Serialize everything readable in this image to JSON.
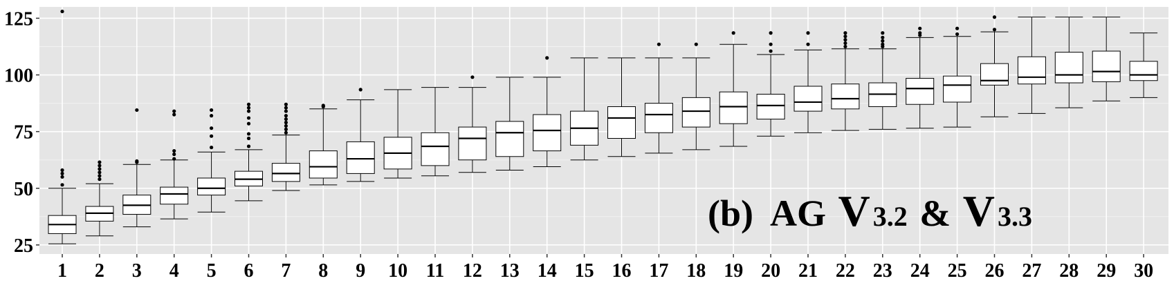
{
  "chart_data": {
    "type": "boxplot",
    "title": "",
    "xlabel": "",
    "ylabel": "",
    "categories": [
      "1",
      "2",
      "3",
      "4",
      "5",
      "6",
      "7",
      "8",
      "9",
      "10",
      "11",
      "12",
      "13",
      "14",
      "15",
      "16",
      "17",
      "18",
      "19",
      "20",
      "21",
      "22",
      "23",
      "24",
      "25",
      "26",
      "27",
      "28",
      "29",
      "30"
    ],
    "ylim": [
      21,
      130
    ],
    "yticks": [
      25,
      50,
      75,
      100,
      125
    ],
    "ytick_labels": [
      "25",
      "50",
      "75",
      "100",
      "125"
    ],
    "grid": true,
    "colors": {
      "panel": "#e5e5e5",
      "grid_major": "#ffffff",
      "box_fill": "#ffffff",
      "stroke": "#000000"
    },
    "annotation": {
      "prefix": "(b)  AG ",
      "v1": "V",
      "v1_sub": "3.2",
      "amp": " & ",
      "v2": "V",
      "v2_sub": "3.3"
    },
    "boxes": [
      {
        "cat": "1",
        "whisker_low": 25.5,
        "q1": 30,
        "median": 34,
        "q3": 38,
        "whisker_high": 50,
        "outliers": [
          51.5,
          55,
          56.5,
          58,
          128
        ]
      },
      {
        "cat": "2",
        "whisker_low": 29,
        "q1": 35.5,
        "median": 39,
        "q3": 42,
        "whisker_high": 52,
        "outliers": [
          54,
          55.5,
          57,
          58.5,
          60,
          61.5
        ]
      },
      {
        "cat": "3",
        "whisker_low": 33,
        "q1": 38.5,
        "median": 42.5,
        "q3": 47,
        "whisker_high": 60.5,
        "outliers": [
          61.5,
          62,
          84.5
        ]
      },
      {
        "cat": "4",
        "whisker_low": 36.5,
        "q1": 43,
        "median": 47.5,
        "q3": 50.5,
        "whisker_high": 62.5,
        "outliers": [
          63,
          65,
          66.5,
          82.5,
          84
        ]
      },
      {
        "cat": "5",
        "whisker_low": 39.5,
        "q1": 47,
        "median": 50,
        "q3": 54.5,
        "whisker_high": 66,
        "outliers": [
          68,
          73,
          76.5,
          82,
          84.5
        ]
      },
      {
        "cat": "6",
        "whisker_low": 44.5,
        "q1": 51,
        "median": 54,
        "q3": 57.5,
        "whisker_high": 67,
        "outliers": [
          68.5,
          72,
          74,
          78.5,
          81,
          84,
          85.5,
          87
        ]
      },
      {
        "cat": "7",
        "whisker_low": 49,
        "q1": 53,
        "median": 56.5,
        "q3": 61,
        "whisker_high": 73.5,
        "outliers": [
          74.5,
          76,
          77.5,
          79,
          80.5,
          82,
          84,
          85.5,
          87
        ]
      },
      {
        "cat": "8",
        "whisker_low": 51.5,
        "q1": 54.5,
        "median": 59.5,
        "q3": 66.5,
        "whisker_high": 85,
        "outliers": [
          86,
          86.5
        ]
      },
      {
        "cat": "9",
        "whisker_low": 53,
        "q1": 56.5,
        "median": 63,
        "q3": 70.5,
        "whisker_high": 89,
        "outliers": [
          93.5
        ]
      },
      {
        "cat": "10",
        "whisker_low": 54.5,
        "q1": 58.5,
        "median": 65.5,
        "q3": 72.5,
        "whisker_high": 93.5,
        "outliers": []
      },
      {
        "cat": "11",
        "whisker_low": 55.5,
        "q1": 60,
        "median": 68.5,
        "q3": 74.5,
        "whisker_high": 94.5,
        "outliers": []
      },
      {
        "cat": "12",
        "whisker_low": 57,
        "q1": 62.5,
        "median": 72,
        "q3": 77,
        "whisker_high": 94.5,
        "outliers": [
          99
        ]
      },
      {
        "cat": "13",
        "whisker_low": 58,
        "q1": 64,
        "median": 74.5,
        "q3": 79.5,
        "whisker_high": 99,
        "outliers": []
      },
      {
        "cat": "14",
        "whisker_low": 59.5,
        "q1": 66.5,
        "median": 75.5,
        "q3": 82.5,
        "whisker_high": 99,
        "outliers": [
          107.5
        ]
      },
      {
        "cat": "15",
        "whisker_low": 62.5,
        "q1": 69,
        "median": 76.5,
        "q3": 84,
        "whisker_high": 107.5,
        "outliers": []
      },
      {
        "cat": "16",
        "whisker_low": 64,
        "q1": 72,
        "median": 81,
        "q3": 86,
        "whisker_high": 107.5,
        "outliers": []
      },
      {
        "cat": "17",
        "whisker_low": 65.5,
        "q1": 74.5,
        "median": 82.5,
        "q3": 87.5,
        "whisker_high": 107.5,
        "outliers": [
          113.5
        ]
      },
      {
        "cat": "18",
        "whisker_low": 67,
        "q1": 77,
        "median": 84,
        "q3": 90,
        "whisker_high": 107.5,
        "outliers": [
          113.5
        ]
      },
      {
        "cat": "19",
        "whisker_low": 68.5,
        "q1": 78.5,
        "median": 86,
        "q3": 92.5,
        "whisker_high": 113.5,
        "outliers": [
          118.5
        ]
      },
      {
        "cat": "20",
        "whisker_low": 73,
        "q1": 80.5,
        "median": 86.5,
        "q3": 91.5,
        "whisker_high": 109,
        "outliers": [
          110.5,
          113.5,
          118.5
        ]
      },
      {
        "cat": "21",
        "whisker_low": 74.5,
        "q1": 84,
        "median": 88,
        "q3": 95,
        "whisker_high": 111,
        "outliers": [
          113.5,
          118.5
        ]
      },
      {
        "cat": "22",
        "whisker_low": 75.5,
        "q1": 85,
        "median": 89.5,
        "q3": 96,
        "whisker_high": 111.5,
        "outliers": [
          112.5,
          114,
          115.5,
          117,
          118.5
        ]
      },
      {
        "cat": "23",
        "whisker_low": 76,
        "q1": 86,
        "median": 91.5,
        "q3": 96.5,
        "whisker_high": 111.5,
        "outliers": [
          112.5,
          113.5,
          115,
          116.5,
          118.5
        ]
      },
      {
        "cat": "24",
        "whisker_low": 76.5,
        "q1": 87,
        "median": 94,
        "q3": 98.5,
        "whisker_high": 116.5,
        "outliers": [
          117.5,
          118.5,
          120.5
        ]
      },
      {
        "cat": "25",
        "whisker_low": 77,
        "q1": 88,
        "median": 95.5,
        "q3": 99.5,
        "whisker_high": 117,
        "outliers": [
          118,
          120.5
        ]
      },
      {
        "cat": "26",
        "whisker_low": 81.5,
        "q1": 95.5,
        "median": 97.5,
        "q3": 105,
        "whisker_high": 119,
        "outliers": [
          120,
          125.5
        ]
      },
      {
        "cat": "27",
        "whisker_low": 83,
        "q1": 96,
        "median": 99,
        "q3": 108,
        "whisker_high": 125.5,
        "outliers": []
      },
      {
        "cat": "28",
        "whisker_low": 85.5,
        "q1": 96.5,
        "median": 100,
        "q3": 110,
        "whisker_high": 125.5,
        "outliers": []
      },
      {
        "cat": "29",
        "whisker_low": 88.5,
        "q1": 97,
        "median": 101.5,
        "q3": 110.5,
        "whisker_high": 125.5,
        "outliers": []
      },
      {
        "cat": "30",
        "whisker_low": 90,
        "q1": 97.5,
        "median": 100,
        "q3": 106,
        "whisker_high": 118.5,
        "outliers": []
      }
    ]
  }
}
